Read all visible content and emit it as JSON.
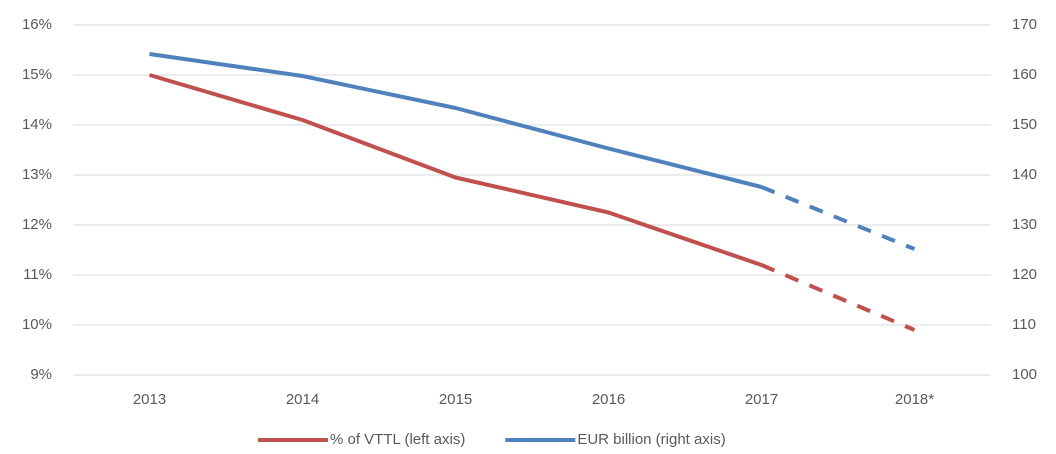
{
  "chart_data": {
    "type": "line",
    "categories": [
      "2013",
      "2014",
      "2015",
      "2016",
      "2017",
      "2018*"
    ],
    "series": [
      {
        "name": "% of VTTL (left axis)",
        "color": "#c0504d",
        "values": [
          15.0,
          14.1,
          12.95,
          12.25,
          11.2,
          9.9
        ],
        "axis": "y",
        "dashed_from": 4
      },
      {
        "name": "EUR billion (right axis)",
        "color": "#4f81bd",
        "values": [
          164.2,
          159.8,
          153.4,
          145.3,
          137.6,
          125.2
        ],
        "axis": "y2",
        "dashed_from": 4
      }
    ],
    "ylim": [
      9,
      16
    ],
    "yticks": [
      {
        "value": 9,
        "label": "9%"
      },
      {
        "value": 10,
        "label": "10%"
      },
      {
        "value": 11,
        "label": "11%"
      },
      {
        "value": 12,
        "label": "12%"
      },
      {
        "value": 13,
        "label": "13%"
      },
      {
        "value": 14,
        "label": "14%"
      },
      {
        "value": 15,
        "label": "15%"
      },
      {
        "value": 16,
        "label": "16%"
      }
    ],
    "y2lim": [
      100,
      170
    ],
    "y2ticks": [
      100,
      110,
      120,
      130,
      140,
      150,
      160,
      170
    ],
    "grid": true,
    "legend": "bottom"
  }
}
